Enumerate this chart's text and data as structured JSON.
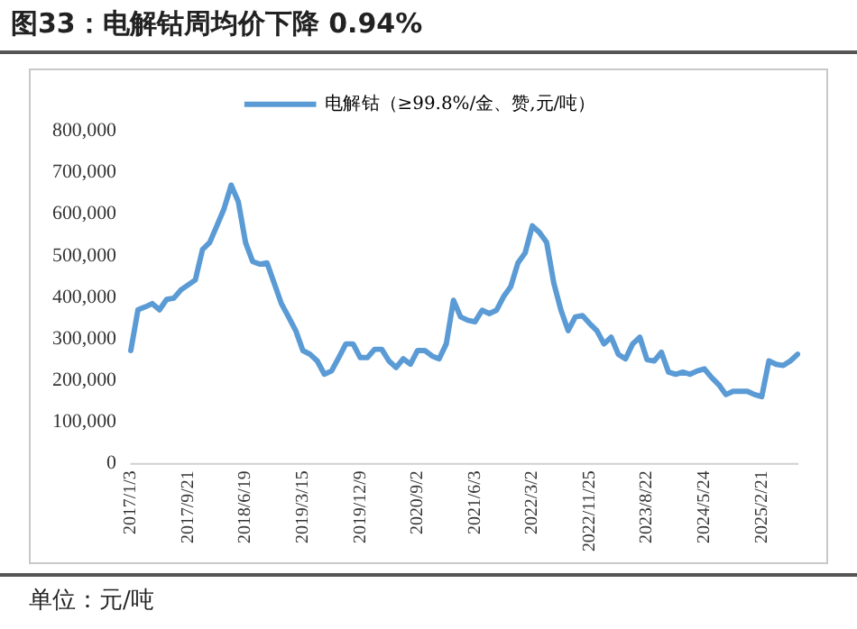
{
  "chart_data": {
    "type": "line",
    "title": "图33：电解钴周均价下降 0.94%",
    "categories": [
      "2017/1/3",
      null,
      null,
      null,
      null,
      null,
      null,
      null,
      "2017/9/21",
      null,
      null,
      null,
      null,
      null,
      null,
      null,
      "2018/6/19",
      null,
      null,
      null,
      null,
      null,
      null,
      null,
      "2019/3/15",
      null,
      null,
      null,
      null,
      null,
      null,
      null,
      "2019/12/9",
      null,
      null,
      null,
      null,
      null,
      null,
      null,
      "2020/9/2",
      null,
      null,
      null,
      null,
      null,
      null,
      null,
      "2021/6/3",
      null,
      null,
      null,
      null,
      null,
      null,
      null,
      "2022/3/2",
      null,
      null,
      null,
      null,
      null,
      null,
      null,
      "2022/11/25",
      null,
      null,
      null,
      null,
      null,
      null,
      null,
      "2023/8/22",
      null,
      null,
      null,
      null,
      null,
      null,
      null,
      "2024/5/24",
      null,
      null,
      null,
      null,
      null,
      null,
      null,
      "2025/2/21",
      null,
      null,
      null,
      null,
      null
    ],
    "series": [
      {
        "name": "电解钴（≥99.8%/金、赞,元/吨）",
        "color": "#5b9bd5",
        "values": [
          272000,
          370000,
          377000,
          385000,
          370000,
          395000,
          398000,
          418000,
          430000,
          442000,
          515000,
          532000,
          572000,
          613000,
          670000,
          630000,
          532000,
          486000,
          480000,
          483000,
          434000,
          385000,
          353000,
          320000,
          272000,
          263000,
          247000,
          215000,
          223000,
          255000,
          288000,
          288000,
          255000,
          255000,
          275000,
          275000,
          247000,
          231000,
          252000,
          239000,
          272000,
          272000,
          259000,
          252000,
          288000,
          393000,
          353000,
          345000,
          341000,
          369000,
          361000,
          369000,
          402000,
          426000,
          483000,
          507000,
          572000,
          556000,
          532000,
          434000,
          369000,
          320000,
          353000,
          356000,
          337000,
          320000,
          288000,
          304000,
          263000,
          252000,
          288000,
          304000,
          250000,
          247000,
          268000,
          220000,
          215000,
          220000,
          215000,
          223000,
          228000,
          207000,
          190000,
          166000,
          174000,
          174000,
          174000,
          166000,
          161000,
          247000,
          239000,
          236000,
          247000,
          263000
        ]
      }
    ],
    "ylim": [
      0,
      800000
    ],
    "yticks": [
      {
        "value": 0,
        "label": "0"
      },
      {
        "value": 100000,
        "label": "100,000"
      },
      {
        "value": 200000,
        "label": "200,000"
      },
      {
        "value": 300000,
        "label": "300,000"
      },
      {
        "value": 400000,
        "label": "400,000"
      },
      {
        "value": 500000,
        "label": "500,000"
      },
      {
        "value": 600000,
        "label": "600,000"
      },
      {
        "value": 700000,
        "label": "700,000"
      },
      {
        "value": 800000,
        "label": "800,000"
      }
    ],
    "grid": false,
    "legend": "top",
    "marker": "none",
    "line_style": "solid",
    "annotations": [
      "单位：元/吨"
    ]
  }
}
